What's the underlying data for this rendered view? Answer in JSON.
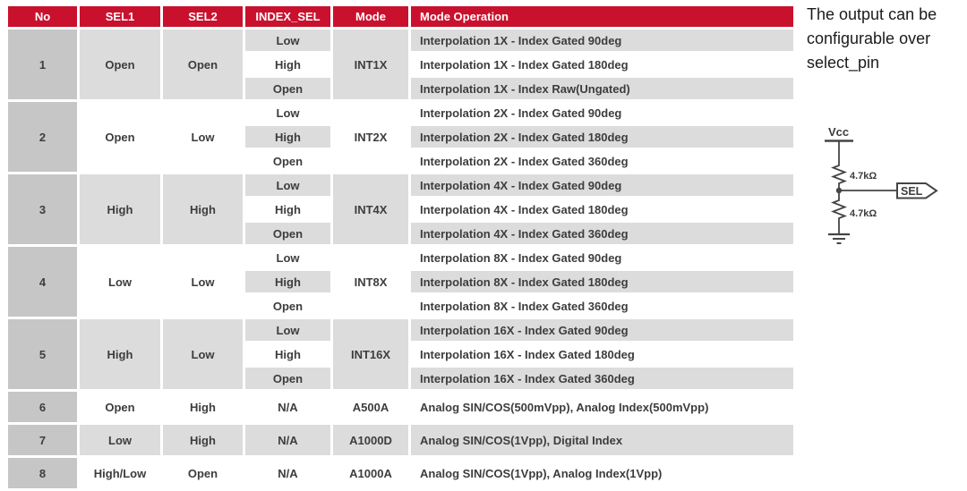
{
  "table": {
    "headers": [
      "No",
      "SEL1",
      "SEL2",
      "INDEX_SEL",
      "Mode",
      "Mode Operation"
    ],
    "groups": [
      {
        "no": "1",
        "sel1": "Open",
        "sel2": "Open",
        "mode": "INT1X",
        "rows": [
          {
            "index_sel": "Low",
            "operation": "Interpolation 1X - Index Gated 90deg"
          },
          {
            "index_sel": "High",
            "operation": "Interpolation 1X - Index Gated 180deg"
          },
          {
            "index_sel": "Open",
            "operation": "Interpolation 1X - Index Raw(Ungated)"
          }
        ]
      },
      {
        "no": "2",
        "sel1": "Open",
        "sel2": "Low",
        "mode": "INT2X",
        "rows": [
          {
            "index_sel": "Low",
            "operation": "Interpolation 2X - Index Gated 90deg"
          },
          {
            "index_sel": "High",
            "operation": "Interpolation 2X - Index Gated 180deg"
          },
          {
            "index_sel": "Open",
            "operation": "Interpolation 2X - Index Gated 360deg"
          }
        ]
      },
      {
        "no": "3",
        "sel1": "High",
        "sel2": "High",
        "mode": "INT4X",
        "rows": [
          {
            "index_sel": "Low",
            "operation": "Interpolation 4X - Index Gated 90deg"
          },
          {
            "index_sel": "High",
            "operation": "Interpolation 4X - Index Gated 180deg"
          },
          {
            "index_sel": "Open",
            "operation": "Interpolation 4X - Index Gated 360deg"
          }
        ]
      },
      {
        "no": "4",
        "sel1": "Low",
        "sel2": "Low",
        "mode": "INT8X",
        "rows": [
          {
            "index_sel": "Low",
            "operation": "Interpolation 8X - Index Gated 90deg"
          },
          {
            "index_sel": "High",
            "operation": "Interpolation 8X - Index Gated 180deg"
          },
          {
            "index_sel": "Open",
            "operation": "Interpolation 8X - Index Gated 360deg"
          }
        ]
      },
      {
        "no": "5",
        "sel1": "High",
        "sel2": "Low",
        "mode": "INT16X",
        "rows": [
          {
            "index_sel": "Low",
            "operation": "Interpolation 16X - Index Gated 90deg"
          },
          {
            "index_sel": "High",
            "operation": "Interpolation 16X - Index Gated 180deg"
          },
          {
            "index_sel": "Open",
            "operation": "Interpolation 16X - Index Gated 360deg"
          }
        ]
      },
      {
        "no": "6",
        "sel1": "Open",
        "sel2": "High",
        "mode": "A500A",
        "rows": [
          {
            "index_sel": "N/A",
            "operation": "Analog SIN/COS(500mVpp), Analog Index(500mVpp)"
          }
        ]
      },
      {
        "no": "7",
        "sel1": "Low",
        "sel2": "High",
        "mode": "A1000D",
        "rows": [
          {
            "index_sel": "N/A",
            "operation": "Analog SIN/COS(1Vpp), Digital Index"
          }
        ]
      },
      {
        "no": "8",
        "sel1": "High/Low",
        "sel2": "Open",
        "mode": "A1000A",
        "rows": [
          {
            "index_sel": "N/A",
            "operation": "Analog SIN/COS(1Vpp), Analog Index(1Vpp)"
          }
        ]
      }
    ]
  },
  "side_note": {
    "text": "The output can be configurable over select_pin"
  },
  "circuit": {
    "vcc_label": "Vcc",
    "resistor_top_label": "4.7kΩ",
    "resistor_bottom_label": "4.7kΩ",
    "sel_tag_label": "SEL"
  },
  "colors": {
    "header_bg": "#c9112e",
    "header_text": "#ffffff",
    "no_column_bg": "#c6c6c6",
    "stripe_gray": "#dcdcdc",
    "stripe_white": "#ffffff",
    "body_text": "#3d3d3d"
  }
}
